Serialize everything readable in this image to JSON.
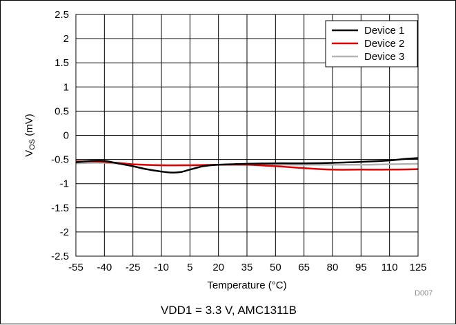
{
  "chart_data": {
    "type": "line",
    "xlabel": "Temperature (°C)",
    "ylabel_main": "V",
    "ylabel_sub": "OS",
    "ylabel_unit": " (mV)",
    "xlim": [
      -55,
      125
    ],
    "ylim": [
      -2.5,
      2.5
    ],
    "x_ticks": [
      -55,
      -40,
      -25,
      -10,
      5,
      20,
      35,
      50,
      65,
      80,
      95,
      110,
      125
    ],
    "x_tick_labels": [
      "-55",
      "-40",
      "-25",
      "-10",
      "5",
      "20",
      "35",
      "50",
      "65",
      "80",
      "95",
      "110",
      "125"
    ],
    "y_ticks": [
      2.5,
      2,
      1.5,
      1,
      0.5,
      0,
      -0.5,
      -1,
      -1.5,
      -2,
      -2.5
    ],
    "y_tick_labels": [
      "2.5",
      "2",
      "1.5",
      "1",
      "0.5",
      "0",
      "-0.5",
      "-1",
      "-1.5",
      "-2",
      "-2.5"
    ],
    "grid": true,
    "legend_position": "top-right",
    "series": [
      {
        "name": "Device 1",
        "color": "#000000",
        "x": [
          -55,
          -47,
          -40,
          -33,
          -25,
          -18,
          -10,
          -5,
          0,
          5,
          12,
          20,
          35,
          50,
          65,
          80,
          95,
          110,
          118,
          125
        ],
        "y": [
          -0.56,
          -0.53,
          -0.53,
          -0.58,
          -0.64,
          -0.7,
          -0.75,
          -0.77,
          -0.76,
          -0.71,
          -0.64,
          -0.61,
          -0.59,
          -0.58,
          -0.58,
          -0.57,
          -0.55,
          -0.52,
          -0.49,
          -0.47
        ]
      },
      {
        "name": "Device 2",
        "color": "#e00000",
        "x": [
          -55,
          -47,
          -40,
          -30,
          -25,
          -10,
          5,
          20,
          35,
          50,
          65,
          80,
          95,
          110,
          125
        ],
        "y": [
          -0.54,
          -0.54,
          -0.55,
          -0.58,
          -0.6,
          -0.62,
          -0.62,
          -0.61,
          -0.61,
          -0.64,
          -0.68,
          -0.71,
          -0.71,
          -0.71,
          -0.7
        ]
      },
      {
        "name": "Device 3",
        "color": "#b4b4b4",
        "x": [
          -55,
          -47,
          -40,
          -25,
          -10,
          5,
          20,
          35,
          50,
          65,
          80,
          95,
          110,
          125
        ],
        "y": [
          -0.58,
          -0.57,
          -0.57,
          -0.6,
          -0.62,
          -0.62,
          -0.61,
          -0.61,
          -0.61,
          -0.61,
          -0.61,
          -0.61,
          -0.6,
          -0.59
        ]
      }
    ]
  },
  "caption": "VDD1 = 3.3 V, AMC1311B",
  "figure_id": "D007"
}
